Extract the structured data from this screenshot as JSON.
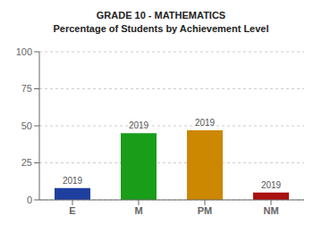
{
  "chart_data": {
    "type": "bar",
    "title": "GRADE 10 - MATHEMATICS",
    "subtitle": "Percentage of Students by Achievement Level",
    "categories": [
      "E",
      "M",
      "PM",
      "NM"
    ],
    "values": [
      8,
      45,
      47,
      5
    ],
    "colors": [
      "#1f3f9f",
      "#1a9e1a",
      "#cc8800",
      "#aa1111"
    ],
    "annotations": [
      "2019",
      "2019",
      "2019",
      "2019"
    ],
    "ylim": [
      0,
      100
    ],
    "yticks": [
      0,
      25,
      50,
      75,
      100
    ],
    "grid": true
  }
}
